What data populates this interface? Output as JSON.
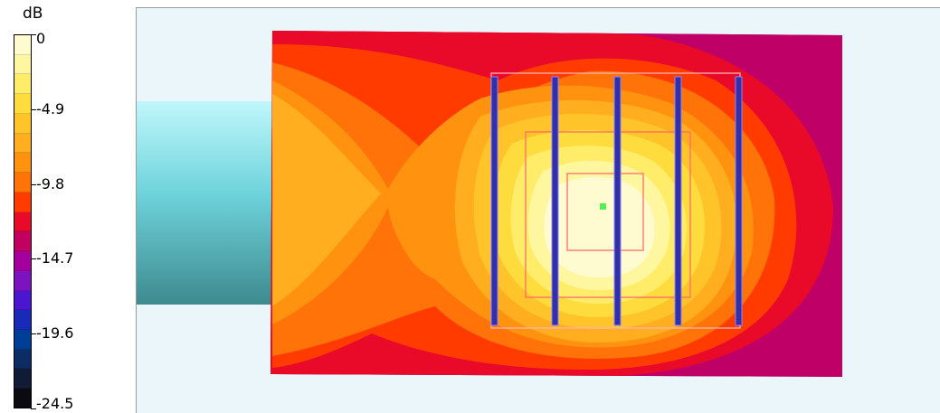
{
  "legend": {
    "unit": "dB",
    "ticks": [
      "0",
      "-4.9",
      "-9.8",
      "-14.7",
      "-19.6",
      "-24.5"
    ],
    "colors": [
      "#fffbd0",
      "#fff7a0",
      "#ffed6a",
      "#ffdc3e",
      "#ffc42a",
      "#ffae1f",
      "#ff9310",
      "#ff7308",
      "#ff3b00",
      "#e80a28",
      "#c20060",
      "#a5009d",
      "#7d12c0",
      "#4a16d0",
      "#1a2ab8",
      "#003d96",
      "#0b2d63",
      "#101b36",
      "#0a0a10"
    ]
  },
  "plot": {
    "background": "#ebf6fb",
    "feed_colors": [
      "#bff7fb",
      "#6fd4dc",
      "#3d8a8e"
    ],
    "strip_color": "#3230a8",
    "marker_color": "#55ee55"
  }
}
